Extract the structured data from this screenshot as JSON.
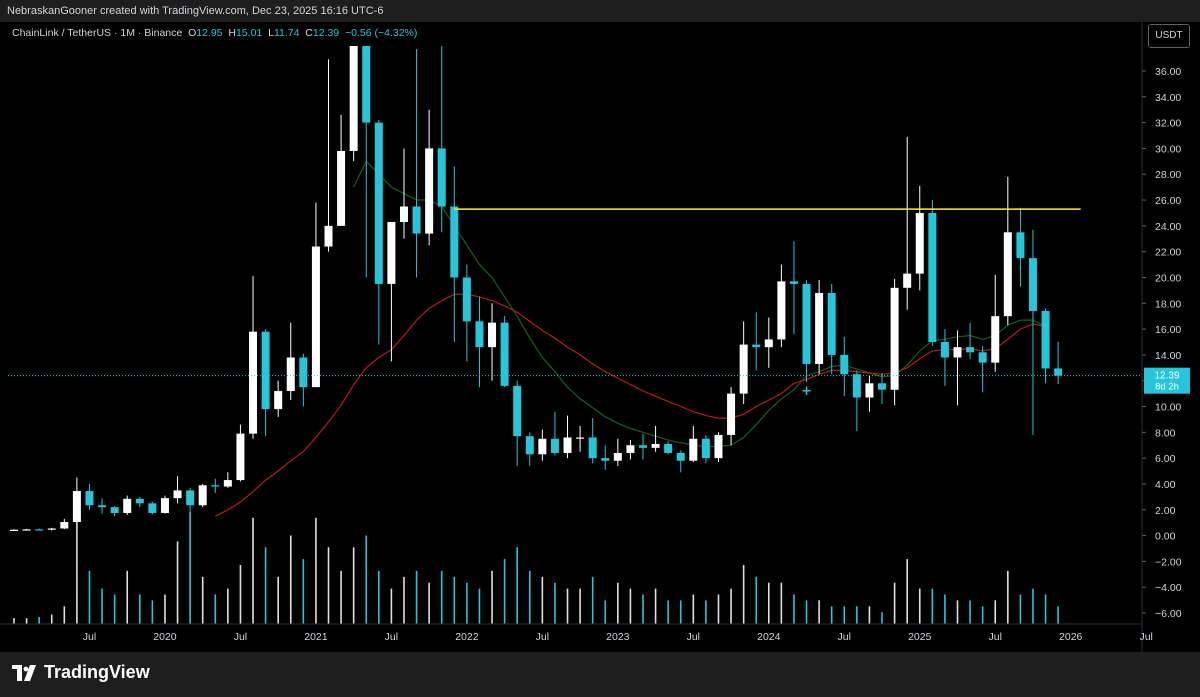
{
  "header": {
    "attribution": "NebraskanGooner created with TradingView.com, Dec 23, 2025 16:16 UTC-6"
  },
  "legend": {
    "symbol": "ChainLink / TetherUS · 1M · Binance",
    "open_label": "O",
    "open": "12.95",
    "high_label": "H",
    "high": "15.01",
    "low_label": "L",
    "low": "11.74",
    "close_label": "C",
    "close": "12.39",
    "change": "−0.56 (−4.32%)"
  },
  "currency": "USDT",
  "footer": {
    "brand": "TradingView",
    "logo_icon": "tradingview-logo-icon"
  },
  "colors": {
    "up": "#ffffff",
    "down": "#26c6da",
    "ema_fast": "#1b5e20",
    "ema_slow": "#b71c1c",
    "resistance": "#ffeb3b",
    "last_price": "#26c6da"
  },
  "chart_data": {
    "type": "candlestick",
    "interval": "1M",
    "price_axis": {
      "ylim": [
        -7,
        38
      ],
      "ticks": [
        36,
        34,
        32,
        30,
        28,
        26,
        24,
        22,
        20,
        18,
        16,
        14,
        12,
        10,
        8,
        6,
        4,
        2,
        0,
        -2,
        -4,
        -6
      ],
      "tick_labels": [
        "36.00",
        "34.00",
        "32.00",
        "30.00",
        "28.00",
        "26.00",
        "24.00",
        "22.00",
        "20.00",
        "18.00",
        "16.00",
        "14.00",
        "12.00",
        "10.00",
        "8.00",
        "6.00",
        "4.00",
        "2.00",
        "0.00",
        "−2.00",
        "−4.00",
        "−6.00"
      ]
    },
    "time_axis": {
      "start": "2019-01",
      "end": "2028-07",
      "labels": [
        {
          "t": "2019-07",
          "text": "Jul"
        },
        {
          "t": "2020-01",
          "text": "2020"
        },
        {
          "t": "2020-07",
          "text": "Jul"
        },
        {
          "t": "2021-01",
          "text": "2021"
        },
        {
          "t": "2021-07",
          "text": "Jul"
        },
        {
          "t": "2022-01",
          "text": "2022"
        },
        {
          "t": "2022-07",
          "text": "Jul"
        },
        {
          "t": "2023-01",
          "text": "2023"
        },
        {
          "t": "2023-07",
          "text": "Jul"
        },
        {
          "t": "2024-01",
          "text": "2024"
        },
        {
          "t": "2024-07",
          "text": "Jul"
        },
        {
          "t": "2025-01",
          "text": "2025"
        },
        {
          "t": "2025-07",
          "text": "Jul"
        },
        {
          "t": "2026-01",
          "text": "2026"
        },
        {
          "t": "2026-07",
          "text": "Jul"
        },
        {
          "t": "2027-01",
          "text": "2027"
        },
        {
          "t": "2027-07",
          "text": "Jul"
        },
        {
          "t": "2028-01",
          "text": "2028"
        }
      ]
    },
    "candles": [
      {
        "t": "2019-01",
        "o": 0.44,
        "h": 0.5,
        "l": 0.38,
        "c": 0.45
      },
      {
        "t": "2019-02",
        "o": 0.45,
        "h": 0.52,
        "l": 0.4,
        "c": 0.48
      },
      {
        "t": "2019-03",
        "o": 0.48,
        "h": 0.55,
        "l": 0.42,
        "c": 0.47
      },
      {
        "t": "2019-04",
        "o": 0.47,
        "h": 0.6,
        "l": 0.4,
        "c": 0.55
      },
      {
        "t": "2019-05",
        "o": 0.55,
        "h": 1.3,
        "l": 0.5,
        "c": 1.05
      },
      {
        "t": "2019-06",
        "o": 1.05,
        "h": 4.5,
        "l": 1.0,
        "c": 3.45
      },
      {
        "t": "2019-07",
        "o": 3.45,
        "h": 4.0,
        "l": 2.0,
        "c": 2.35
      },
      {
        "t": "2019-08",
        "o": 2.35,
        "h": 2.9,
        "l": 1.7,
        "c": 2.2
      },
      {
        "t": "2019-09",
        "o": 2.2,
        "h": 2.3,
        "l": 1.5,
        "c": 1.75
      },
      {
        "t": "2019-10",
        "o": 1.75,
        "h": 3.1,
        "l": 1.6,
        "c": 2.85
      },
      {
        "t": "2019-11",
        "o": 2.85,
        "h": 3.0,
        "l": 2.2,
        "c": 2.5
      },
      {
        "t": "2019-12",
        "o": 2.5,
        "h": 2.6,
        "l": 1.65,
        "c": 1.75
      },
      {
        "t": "2020-01",
        "o": 1.75,
        "h": 3.1,
        "l": 1.7,
        "c": 2.9
      },
      {
        "t": "2020-02",
        "o": 2.9,
        "h": 4.6,
        "l": 2.5,
        "c": 3.5
      },
      {
        "t": "2020-03",
        "o": 3.5,
        "h": 3.7,
        "l": 1.5,
        "c": 2.35
      },
      {
        "t": "2020-04",
        "o": 2.35,
        "h": 4.0,
        "l": 2.2,
        "c": 3.9
      },
      {
        "t": "2020-05",
        "o": 3.9,
        "h": 4.4,
        "l": 3.3,
        "c": 3.8
      },
      {
        "t": "2020-06",
        "o": 3.8,
        "h": 4.9,
        "l": 3.7,
        "c": 4.3
      },
      {
        "t": "2020-07",
        "o": 4.3,
        "h": 8.6,
        "l": 4.2,
        "c": 7.9
      },
      {
        "t": "2020-08",
        "o": 7.9,
        "h": 20.1,
        "l": 7.5,
        "c": 15.8
      },
      {
        "t": "2020-09",
        "o": 15.8,
        "h": 16.0,
        "l": 7.7,
        "c": 9.8
      },
      {
        "t": "2020-10",
        "o": 9.8,
        "h": 12.0,
        "l": 9.2,
        "c": 11.2
      },
      {
        "t": "2020-11",
        "o": 11.2,
        "h": 16.5,
        "l": 10.5,
        "c": 13.8
      },
      {
        "t": "2020-12",
        "o": 13.8,
        "h": 14.1,
        "l": 10.0,
        "c": 11.5
      },
      {
        "t": "2021-01",
        "o": 11.5,
        "h": 25.8,
        "l": 11.5,
        "c": 22.4
      },
      {
        "t": "2021-02",
        "o": 22.4,
        "h": 36.9,
        "l": 22.0,
        "c": 24.0
      },
      {
        "t": "2021-03",
        "o": 24.0,
        "h": 32.6,
        "l": 24.0,
        "c": 29.8
      },
      {
        "t": "2021-04",
        "o": 29.8,
        "h": 44.0,
        "l": 29.0,
        "c": 38.0
      },
      {
        "t": "2021-05",
        "o": 38.0,
        "h": 52.7,
        "l": 20.0,
        "c": 32.0
      },
      {
        "t": "2021-06",
        "o": 32.0,
        "h": 32.2,
        "l": 14.8,
        "c": 19.5
      },
      {
        "t": "2021-07",
        "o": 19.5,
        "h": 24.0,
        "l": 13.5,
        "c": 24.3
      },
      {
        "t": "2021-08",
        "o": 24.3,
        "h": 30.0,
        "l": 23.0,
        "c": 25.5
      },
      {
        "t": "2021-09",
        "o": 25.5,
        "h": 37.7,
        "l": 20.0,
        "c": 23.4
      },
      {
        "t": "2021-10",
        "o": 23.4,
        "h": 33.0,
        "l": 22.5,
        "c": 30.0
      },
      {
        "t": "2021-11",
        "o": 30.0,
        "h": 38.2,
        "l": 23.5,
        "c": 25.5
      },
      {
        "t": "2021-12",
        "o": 25.5,
        "h": 28.6,
        "l": 15.0,
        "c": 20.0
      },
      {
        "t": "2022-01",
        "o": 20.0,
        "h": 21.0,
        "l": 13.5,
        "c": 16.6
      },
      {
        "t": "2022-02",
        "o": 16.6,
        "h": 18.5,
        "l": 11.5,
        "c": 14.6
      },
      {
        "t": "2022-03",
        "o": 14.6,
        "h": 18.0,
        "l": 12.0,
        "c": 16.5
      },
      {
        "t": "2022-04",
        "o": 16.5,
        "h": 17.0,
        "l": 11.5,
        "c": 11.6
      },
      {
        "t": "2022-05",
        "o": 11.6,
        "h": 12.0,
        "l": 5.4,
        "c": 7.7
      },
      {
        "t": "2022-06",
        "o": 7.7,
        "h": 8.0,
        "l": 5.4,
        "c": 6.3
      },
      {
        "t": "2022-07",
        "o": 6.3,
        "h": 8.2,
        "l": 5.8,
        "c": 7.5
      },
      {
        "t": "2022-08",
        "o": 7.5,
        "h": 9.6,
        "l": 6.2,
        "c": 6.4
      },
      {
        "t": "2022-09",
        "o": 6.4,
        "h": 9.3,
        "l": 6.0,
        "c": 7.6
      },
      {
        "t": "2022-10",
        "o": 7.6,
        "h": 8.5,
        "l": 6.5,
        "c": 7.6
      },
      {
        "t": "2022-11",
        "o": 7.6,
        "h": 9.1,
        "l": 5.6,
        "c": 6.0
      },
      {
        "t": "2022-12",
        "o": 6.0,
        "h": 7.0,
        "l": 5.1,
        "c": 5.8
      },
      {
        "t": "2023-01",
        "o": 5.8,
        "h": 7.5,
        "l": 5.4,
        "c": 6.4
      },
      {
        "t": "2023-02",
        "o": 6.4,
        "h": 7.4,
        "l": 5.9,
        "c": 7.0
      },
      {
        "t": "2023-03",
        "o": 7.0,
        "h": 7.9,
        "l": 5.9,
        "c": 6.8
      },
      {
        "t": "2023-04",
        "o": 6.8,
        "h": 8.5,
        "l": 6.5,
        "c": 7.1
      },
      {
        "t": "2023-05",
        "o": 7.1,
        "h": 7.3,
        "l": 6.3,
        "c": 6.4
      },
      {
        "t": "2023-06",
        "o": 6.4,
        "h": 6.6,
        "l": 4.9,
        "c": 5.8
      },
      {
        "t": "2023-07",
        "o": 5.8,
        "h": 8.5,
        "l": 5.7,
        "c": 7.5
      },
      {
        "t": "2023-08",
        "o": 7.5,
        "h": 7.8,
        "l": 5.6,
        "c": 6.0
      },
      {
        "t": "2023-09",
        "o": 6.0,
        "h": 8.0,
        "l": 5.7,
        "c": 7.8
      },
      {
        "t": "2023-10",
        "o": 7.8,
        "h": 11.5,
        "l": 7.0,
        "c": 11.0
      },
      {
        "t": "2023-11",
        "o": 11.0,
        "h": 16.6,
        "l": 10.2,
        "c": 14.8
      },
      {
        "t": "2023-12",
        "o": 14.8,
        "h": 17.3,
        "l": 12.8,
        "c": 14.6
      },
      {
        "t": "2024-01",
        "o": 14.6,
        "h": 16.9,
        "l": 13.0,
        "c": 15.2
      },
      {
        "t": "2024-02",
        "o": 15.2,
        "h": 21.0,
        "l": 14.6,
        "c": 19.7
      },
      {
        "t": "2024-03",
        "o": 19.7,
        "h": 22.8,
        "l": 15.6,
        "c": 19.5
      },
      {
        "t": "2024-04",
        "o": 19.5,
        "h": 19.8,
        "l": 11.9,
        "c": 13.3
      },
      {
        "t": "2024-05",
        "o": 13.3,
        "h": 19.8,
        "l": 12.5,
        "c": 18.8
      },
      {
        "t": "2024-06",
        "o": 18.8,
        "h": 19.5,
        "l": 12.5,
        "c": 14.0
      },
      {
        "t": "2024-07",
        "o": 14.0,
        "h": 15.4,
        "l": 10.8,
        "c": 12.5
      },
      {
        "t": "2024-08",
        "o": 12.5,
        "h": 12.8,
        "l": 8.1,
        "c": 10.7
      },
      {
        "t": "2024-09",
        "o": 10.7,
        "h": 12.4,
        "l": 9.6,
        "c": 11.8
      },
      {
        "t": "2024-10",
        "o": 11.8,
        "h": 12.6,
        "l": 10.2,
        "c": 11.3
      },
      {
        "t": "2024-11",
        "o": 11.3,
        "h": 19.9,
        "l": 10.1,
        "c": 19.2
      },
      {
        "t": "2024-12",
        "o": 19.2,
        "h": 30.9,
        "l": 17.5,
        "c": 20.3
      },
      {
        "t": "2025-01",
        "o": 20.3,
        "h": 27.1,
        "l": 19.0,
        "c": 25.0
      },
      {
        "t": "2025-02",
        "o": 25.0,
        "h": 26.0,
        "l": 14.7,
        "c": 15.0
      },
      {
        "t": "2025-03",
        "o": 15.0,
        "h": 16.0,
        "l": 11.6,
        "c": 13.8
      },
      {
        "t": "2025-04",
        "o": 13.8,
        "h": 15.9,
        "l": 10.1,
        "c": 14.6
      },
      {
        "t": "2025-05",
        "o": 14.6,
        "h": 16.5,
        "l": 13.7,
        "c": 14.2
      },
      {
        "t": "2025-06",
        "o": 14.2,
        "h": 14.7,
        "l": 11.1,
        "c": 13.4
      },
      {
        "t": "2025-07",
        "o": 13.4,
        "h": 20.2,
        "l": 12.7,
        "c": 17.0
      },
      {
        "t": "2025-08",
        "o": 17.0,
        "h": 27.8,
        "l": 16.3,
        "c": 23.5
      },
      {
        "t": "2025-09",
        "o": 23.5,
        "h": 25.4,
        "l": 19.3,
        "c": 21.5
      },
      {
        "t": "2025-10",
        "o": 21.5,
        "h": 23.7,
        "l": 7.8,
        "c": 17.4
      },
      {
        "t": "2025-11",
        "o": 17.4,
        "h": 17.6,
        "l": 11.8,
        "c": 12.95
      },
      {
        "t": "2025-12",
        "o": 12.95,
        "h": 15.01,
        "l": 11.74,
        "c": 12.39
      }
    ],
    "volume_relative": [
      0.05,
      0.05,
      0.06,
      0.08,
      0.15,
      0.9,
      0.45,
      0.3,
      0.25,
      0.45,
      0.25,
      0.2,
      0.25,
      0.7,
      0.95,
      0.4,
      0.25,
      0.3,
      0.5,
      0.9,
      0.65,
      0.4,
      0.75,
      0.55,
      0.9,
      0.65,
      0.45,
      0.65,
      0.75,
      0.45,
      0.3,
      0.4,
      0.45,
      0.35,
      0.45,
      0.4,
      0.35,
      0.3,
      0.45,
      0.55,
      0.65,
      0.45,
      0.4,
      0.35,
      0.3,
      0.3,
      0.4,
      0.2,
      0.35,
      0.3,
      0.25,
      0.3,
      0.2,
      0.2,
      0.25,
      0.2,
      0.25,
      0.3,
      0.5,
      0.4,
      0.35,
      0.35,
      0.25,
      0.2,
      0.2,
      0.15,
      0.15,
      0.15,
      0.15,
      0.1,
      0.35,
      0.55,
      0.3,
      0.3,
      0.25,
      0.2,
      0.2,
      0.15,
      0.2,
      0.45,
      0.25,
      0.3,
      0.25,
      0.15
    ],
    "ema_fast": [
      [
        27,
        27.0
      ],
      [
        28,
        29.0
      ],
      [
        29,
        28.0
      ],
      [
        30,
        27.0
      ],
      [
        31,
        26.5
      ],
      [
        32,
        26.0
      ],
      [
        33,
        26.0
      ],
      [
        34,
        25.5
      ],
      [
        35,
        24.0
      ],
      [
        36,
        22.5
      ],
      [
        37,
        21.0
      ],
      [
        38,
        20.0
      ],
      [
        39,
        18.5
      ],
      [
        40,
        17.0
      ],
      [
        41,
        15.3
      ],
      [
        42,
        13.8
      ],
      [
        43,
        12.7
      ],
      [
        44,
        11.5
      ],
      [
        45,
        10.6
      ],
      [
        46,
        9.9
      ],
      [
        47,
        9.2
      ],
      [
        48,
        8.7
      ],
      [
        49,
        8.3
      ],
      [
        50,
        8.0
      ],
      [
        51,
        7.7
      ],
      [
        52,
        7.4
      ],
      [
        53,
        7.2
      ],
      [
        54,
        7.0
      ],
      [
        55,
        6.9
      ],
      [
        56,
        6.9
      ],
      [
        57,
        7.0
      ],
      [
        58,
        7.6
      ],
      [
        59,
        8.6
      ],
      [
        60,
        9.7
      ],
      [
        61,
        10.6
      ],
      [
        62,
        11.3
      ],
      [
        63,
        12.4
      ],
      [
        64,
        12.7
      ],
      [
        65,
        13.1
      ],
      [
        66,
        13.2
      ],
      [
        67,
        12.9
      ],
      [
        68,
        12.6
      ],
      [
        69,
        12.3
      ],
      [
        70,
        12.4
      ],
      [
        71,
        13.2
      ],
      [
        72,
        14.3
      ],
      [
        73,
        15.1
      ],
      [
        74,
        15.2
      ],
      [
        75,
        15.4
      ],
      [
        76,
        15.5
      ],
      [
        77,
        15.2
      ],
      [
        78,
        15.5
      ],
      [
        79,
        16.3
      ],
      [
        80,
        16.7
      ],
      [
        81,
        16.7
      ],
      [
        82,
        16.2
      ]
    ],
    "ema_slow": [
      [
        16,
        1.5
      ],
      [
        17,
        2.0
      ],
      [
        18,
        2.6
      ],
      [
        19,
        3.4
      ],
      [
        20,
        4.3
      ],
      [
        21,
        5.0
      ],
      [
        22,
        5.8
      ],
      [
        23,
        6.5
      ],
      [
        24,
        7.6
      ],
      [
        25,
        8.8
      ],
      [
        26,
        10.1
      ],
      [
        27,
        11.7
      ],
      [
        28,
        13.0
      ],
      [
        29,
        13.8
      ],
      [
        30,
        14.4
      ],
      [
        31,
        15.5
      ],
      [
        32,
        16.7
      ],
      [
        33,
        17.6
      ],
      [
        34,
        18.2
      ],
      [
        35,
        18.7
      ],
      [
        36,
        18.7
      ],
      [
        37,
        18.5
      ],
      [
        38,
        18.2
      ],
      [
        39,
        17.8
      ],
      [
        40,
        17.3
      ],
      [
        41,
        16.6
      ],
      [
        42,
        15.9
      ],
      [
        43,
        15.3
      ],
      [
        44,
        14.6
      ],
      [
        45,
        14.0
      ],
      [
        46,
        13.3
      ],
      [
        47,
        12.7
      ],
      [
        48,
        12.2
      ],
      [
        49,
        11.7
      ],
      [
        50,
        11.2
      ],
      [
        51,
        10.8
      ],
      [
        52,
        10.4
      ],
      [
        53,
        10.0
      ],
      [
        54,
        9.6
      ],
      [
        55,
        9.3
      ],
      [
        56,
        9.1
      ],
      [
        57,
        9.1
      ],
      [
        58,
        9.4
      ],
      [
        59,
        10.0
      ],
      [
        60,
        10.5
      ],
      [
        61,
        11.0
      ],
      [
        62,
        11.8
      ],
      [
        63,
        12.1
      ],
      [
        64,
        12.5
      ],
      [
        65,
        12.8
      ],
      [
        66,
        12.8
      ],
      [
        67,
        12.7
      ],
      [
        68,
        12.6
      ],
      [
        69,
        12.5
      ],
      [
        70,
        12.6
      ],
      [
        71,
        13.0
      ],
      [
        72,
        13.7
      ],
      [
        73,
        14.3
      ],
      [
        74,
        14.4
      ],
      [
        75,
        14.4
      ],
      [
        76,
        14.5
      ],
      [
        77,
        14.3
      ],
      [
        78,
        14.5
      ],
      [
        79,
        15.2
      ],
      [
        80,
        16.0
      ],
      [
        81,
        16.4
      ],
      [
        82,
        16.2
      ]
    ],
    "resistance": {
      "price": 25.3,
      "from": "2021-12",
      "to": "2026-01"
    },
    "last_price": {
      "value": "12.39",
      "countdown": "8d 2h",
      "price": 12.39
    },
    "markers": [
      {
        "t": "2022-04",
        "price": 15.3,
        "symbol": "+"
      },
      {
        "t": "2024-04",
        "price": 11.2,
        "symbol": "+"
      }
    ]
  }
}
